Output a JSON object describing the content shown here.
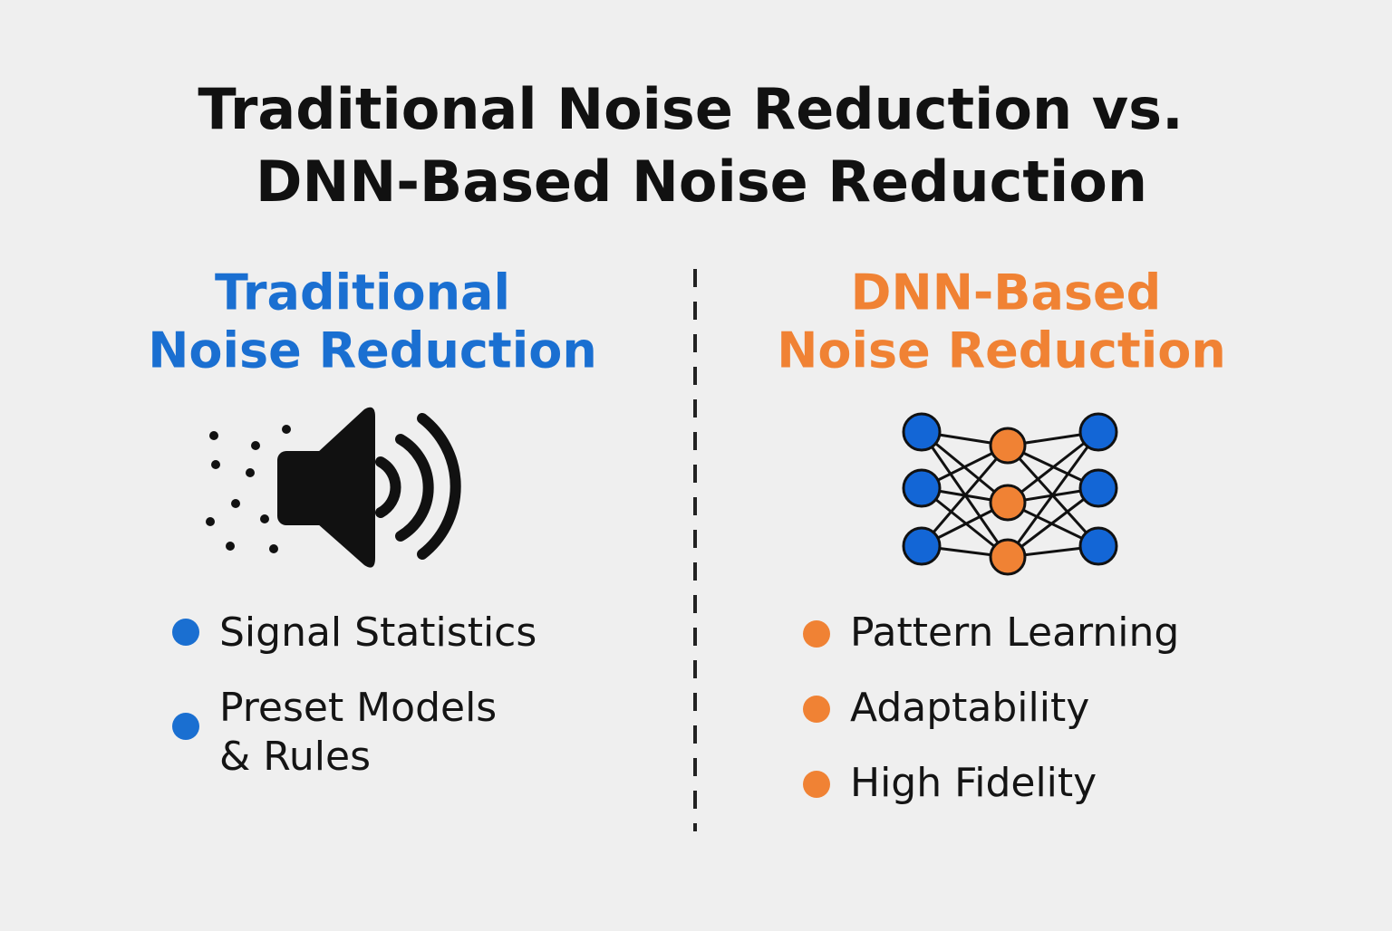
{
  "title": [
    "Traditional Noise Reduction vs.",
    "DNN-Based Noise Reduction"
  ],
  "left": {
    "heading": [
      "Traditional",
      "Noise Reduction"
    ],
    "items": [
      [
        "Signal Statistics"
      ],
      [
        "Preset Models",
        "& Rules"
      ]
    ]
  },
  "right": {
    "heading": [
      "DNN-Based",
      "Noise Reduction"
    ],
    "items": [
      [
        "Pattern Learning"
      ],
      [
        "Adaptability"
      ],
      [
        "High Fidelity"
      ]
    ]
  }
}
